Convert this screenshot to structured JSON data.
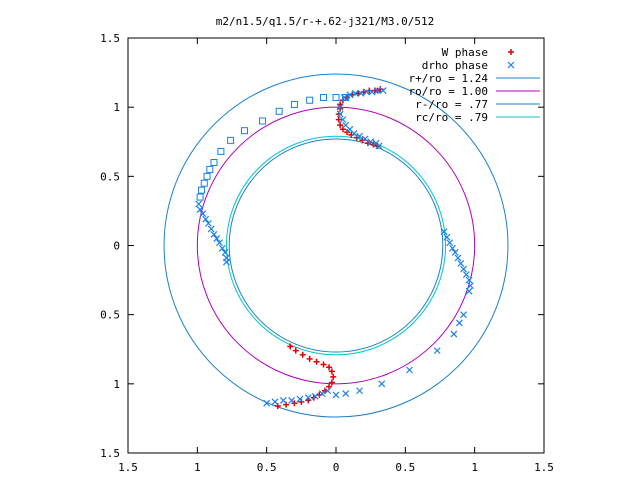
{
  "chart_data": {
    "type": "scatter",
    "title": "m2/n1.5/q1.5/r-+.62-j321/M3.0/512",
    "xlabel": "",
    "ylabel": "",
    "xlim": [
      -1.5,
      1.5
    ],
    "ylim": [
      -1.5,
      1.5
    ],
    "x_ticks": [
      -1.5,
      -1,
      -0.5,
      0,
      0.5,
      1,
      1.5
    ],
    "x_tick_labels": [
      "1.5",
      "1",
      "0.5",
      "0",
      "0.5",
      "1",
      "1.5"
    ],
    "y_ticks": [
      1.5,
      1,
      0.5,
      0,
      -0.5,
      -1,
      -1.5
    ],
    "y_tick_labels": [
      "1.5",
      "1",
      "0.5",
      "0",
      "0.5",
      "1",
      "1.5"
    ],
    "grid": false,
    "legend_position": "top-right",
    "circles": [
      {
        "name": "r+/ro = 1.24",
        "radius": 1.24,
        "color": "#1a80c8"
      },
      {
        "name": "ro/ro = 1.00",
        "radius": 1.0,
        "color": "#b000b8"
      },
      {
        "name": "r-/ro = .77",
        "radius": 0.77,
        "color": "#1a80c8"
      },
      {
        "name": "rc/ro = .79",
        "radius": 0.79,
        "color": "#00c8c8"
      }
    ],
    "series": [
      {
        "name": "W phase",
        "marker": "plus",
        "color": "#e00000",
        "points": [
          [
            0.03,
            1.02
          ],
          [
            0.05,
            1.05
          ],
          [
            0.08,
            1.07
          ],
          [
            0.12,
            1.09
          ],
          [
            0.16,
            1.1
          ],
          [
            0.2,
            1.11
          ],
          [
            0.24,
            1.12
          ],
          [
            0.28,
            1.12
          ],
          [
            0.32,
            1.13
          ],
          [
            0.3,
            1.12
          ],
          [
            0.03,
            0.99
          ],
          [
            0.02,
            0.95
          ],
          [
            0.02,
            0.91
          ],
          [
            0.03,
            0.87
          ],
          [
            0.05,
            0.84
          ],
          [
            0.08,
            0.82
          ],
          [
            0.11,
            0.8
          ],
          [
            0.15,
            0.78
          ],
          [
            0.19,
            0.76
          ],
          [
            0.23,
            0.74
          ],
          [
            0.27,
            0.73
          ],
          [
            0.3,
            0.72
          ],
          [
            -0.33,
            -0.73
          ],
          [
            -0.29,
            -0.76
          ],
          [
            -0.24,
            -0.79
          ],
          [
            -0.19,
            -0.82
          ],
          [
            -0.14,
            -0.84
          ],
          [
            -0.09,
            -0.86
          ],
          [
            -0.05,
            -0.88
          ],
          [
            -0.03,
            -0.91
          ],
          [
            -0.02,
            -0.95
          ],
          [
            -0.03,
            -0.99
          ],
          [
            -0.05,
            -1.02
          ],
          [
            -0.08,
            -1.05
          ],
          [
            -0.12,
            -1.08
          ],
          [
            -0.16,
            -1.1
          ],
          [
            -0.2,
            -1.12
          ],
          [
            -0.25,
            -1.13
          ],
          [
            -0.3,
            -1.14
          ],
          [
            -0.36,
            -1.15
          ],
          [
            -0.42,
            -1.16
          ]
        ]
      },
      {
        "name": "drho phase",
        "marker": "cross",
        "color": "#1a80e8",
        "points": [
          [
            0.06,
            1.07
          ],
          [
            0.1,
            1.09
          ],
          [
            0.14,
            1.1
          ],
          [
            0.18,
            1.1
          ],
          [
            0.22,
            1.11
          ],
          [
            0.26,
            1.11
          ],
          [
            0.3,
            1.12
          ],
          [
            0.34,
            1.12
          ],
          [
            0.03,
            1.0
          ],
          [
            0.03,
            0.95
          ],
          [
            0.05,
            0.91
          ],
          [
            0.07,
            0.87
          ],
          [
            0.1,
            0.84
          ],
          [
            0.13,
            0.81
          ],
          [
            0.17,
            0.79
          ],
          [
            0.21,
            0.77
          ],
          [
            0.25,
            0.75
          ],
          [
            0.29,
            0.74
          ],
          [
            0.31,
            0.72
          ],
          [
            0.78,
            0.1
          ],
          [
            0.8,
            0.06
          ],
          [
            0.82,
            0.02
          ],
          [
            0.84,
            -0.02
          ],
          [
            0.86,
            -0.05
          ],
          [
            0.88,
            -0.09
          ],
          [
            0.9,
            -0.13
          ],
          [
            0.92,
            -0.17
          ],
          [
            0.94,
            -0.21
          ],
          [
            0.96,
            -0.25
          ],
          [
            0.97,
            -0.29
          ],
          [
            0.96,
            -0.33
          ],
          [
            0.92,
            -0.5
          ],
          [
            0.89,
            -0.56
          ],
          [
            0.85,
            -0.64
          ],
          [
            0.73,
            -0.76
          ],
          [
            0.53,
            -0.9
          ],
          [
            0.33,
            -1.0
          ],
          [
            0.17,
            -1.05
          ],
          [
            0.07,
            -1.07
          ],
          [
            0.0,
            -1.08
          ],
          [
            -0.06,
            -1.05
          ],
          [
            -0.1,
            -1.07
          ],
          [
            -0.15,
            -1.09
          ],
          [
            -0.2,
            -1.1
          ],
          [
            -0.26,
            -1.11
          ],
          [
            -0.32,
            -1.12
          ],
          [
            -0.38,
            -1.12
          ],
          [
            -0.44,
            -1.13
          ],
          [
            -0.5,
            -1.14
          ]
        ]
      },
      {
        "name": "",
        "marker": "square",
        "color": "#1a80e8",
        "points": [
          [
            0.07,
            1.07
          ],
          [
            0.0,
            1.07
          ],
          [
            -0.09,
            1.07
          ],
          [
            -0.19,
            1.05
          ],
          [
            -0.3,
            1.02
          ],
          [
            -0.41,
            0.97
          ],
          [
            -0.53,
            0.9
          ],
          [
            -0.66,
            0.83
          ],
          [
            -0.76,
            0.76
          ],
          [
            -0.83,
            0.68
          ],
          [
            -0.88,
            0.6
          ],
          [
            -0.91,
            0.55
          ],
          [
            -0.93,
            0.5
          ],
          [
            -0.95,
            0.45
          ],
          [
            -0.97,
            0.4
          ],
          [
            -0.98,
            0.35
          ]
        ]
      },
      {
        "name": "",
        "marker": "cross",
        "color": "#1a80e8",
        "points": [
          [
            -0.99,
            0.3
          ],
          [
            -0.98,
            0.26
          ],
          [
            -0.96,
            0.23
          ],
          [
            -0.94,
            0.19
          ],
          [
            -0.92,
            0.16
          ],
          [
            -0.9,
            0.12
          ],
          [
            -0.88,
            0.08
          ],
          [
            -0.86,
            0.05
          ],
          [
            -0.84,
            0.02
          ],
          [
            -0.82,
            -0.02
          ],
          [
            -0.8,
            -0.05
          ],
          [
            -0.79,
            -0.09
          ],
          [
            -0.79,
            -0.12
          ]
        ]
      }
    ]
  }
}
